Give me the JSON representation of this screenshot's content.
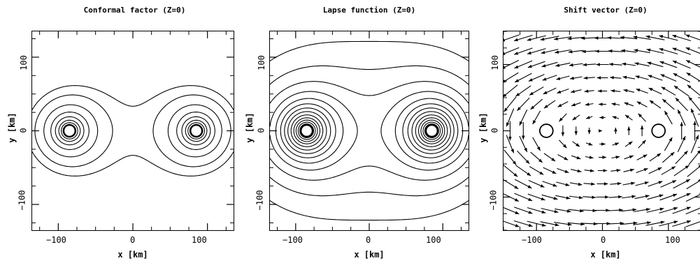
{
  "panels": [
    {
      "title": "Conformal factor (Z=0)",
      "xlabel": "x [km]",
      "ylabel": "y [km]",
      "xticks": [
        "−100",
        "0",
        "100"
      ],
      "yticks": [
        "100",
        "0",
        "−100"
      ]
    },
    {
      "title": "Lapse function (Z=0)",
      "xlabel": "x [km]",
      "ylabel": "y [km]",
      "xticks": [
        "−100",
        "0",
        "100"
      ],
      "yticks": [
        "100",
        "0",
        "−100"
      ]
    },
    {
      "title": "Shift vector (Z=0)",
      "xlabel": "x [km]",
      "ylabel": "y [km]",
      "xticks": [
        "−100",
        "0",
        "100"
      ],
      "yticks": [
        "100",
        "0",
        "−100"
      ]
    }
  ],
  "chart_data": [
    {
      "type": "contour",
      "title": "Conformal factor (Z=0)",
      "xlabel": "x [km]",
      "ylabel": "y [km]",
      "xlim": [
        -135,
        135
      ],
      "ylim": [
        -135,
        135
      ],
      "sources": [
        {
          "x": -85,
          "y": 0
        },
        {
          "x": 85,
          "y": 0
        }
      ]
    },
    {
      "type": "contour",
      "title": "Lapse function (Z=0)",
      "xlabel": "x [km]",
      "ylabel": "y [km]",
      "xlim": [
        -135,
        135
      ],
      "ylim": [
        -135,
        135
      ],
      "sources": [
        {
          "x": -85,
          "y": 0
        },
        {
          "x": 85,
          "y": 0
        }
      ]
    },
    {
      "type": "vector",
      "title": "Shift vector (Z=0)",
      "xlabel": "x [km]",
      "ylabel": "y [km]",
      "xlim": [
        -150,
        150
      ],
      "ylim": [
        -150,
        150
      ],
      "stars": [
        {
          "x": -85,
          "y": 0
        },
        {
          "x": 85,
          "y": 0
        }
      ]
    }
  ]
}
